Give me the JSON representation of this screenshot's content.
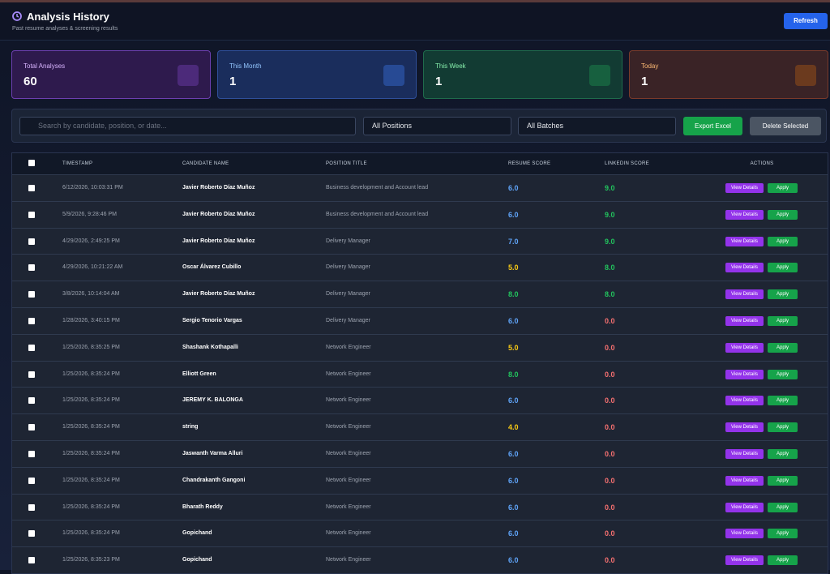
{
  "header": {
    "title": "Analysis History",
    "subtitle": "Past resume analyses & screening results",
    "refresh": "Refresh"
  },
  "stats": [
    {
      "label": "Total Analyses",
      "value": "60"
    },
    {
      "label": "This Month",
      "value": "1"
    },
    {
      "label": "This Week",
      "value": "1"
    },
    {
      "label": "Today",
      "value": "1"
    }
  ],
  "toolbar": {
    "search_placeholder": "Search by candidate, position, or date...",
    "positions": "All Positions",
    "batches": "All Batches",
    "export": "Export Excel",
    "delete": "Delete Selected"
  },
  "table": {
    "columns": [
      "TIMESTAMP",
      "CANDIDATE NAME",
      "POSITION TITLE",
      "RESUME SCORE",
      "LINKEDIN SCORE",
      "ACTIONS"
    ],
    "actions": [
      "View Details",
      "Apply"
    ],
    "rows": [
      [
        "6/12/2026, 10:03:31 PM",
        "Javier Roberto Díaz Muñoz",
        "Business development and Account lead",
        "6.0",
        "9.0"
      ],
      [
        "5/9/2026, 9:28:46 PM",
        "Javier Roberto Díaz Muñoz",
        "Business development and Account lead",
        "6.0",
        "9.0"
      ],
      [
        "4/29/2026, 2:49:25 PM",
        "Javier Roberto Díaz Muñoz",
        "Delivery Manager",
        "7.0",
        "9.0"
      ],
      [
        "4/29/2026, 10:21:22 AM",
        "Oscar Álvarez Cubillo",
        "Delivery Manager",
        "5.0",
        "8.0"
      ],
      [
        "3/8/2026, 10:14:04 AM",
        "Javier Roberto Díaz Muñoz",
        "Delivery Manager",
        "8.0",
        "8.0"
      ],
      [
        "1/28/2026, 3:40:15 PM",
        "Sergio Tenorio Vargas",
        "Delivery Manager",
        "6.0",
        "0.0"
      ],
      [
        "1/25/2026, 8:35:25 PM",
        "Shashank Kothapalli",
        "Network Engineer",
        "5.0",
        "0.0"
      ],
      [
        "1/25/2026, 8:35:24 PM",
        "Elliott Green",
        "Network Engineer",
        "8.0",
        "0.0"
      ],
      [
        "1/25/2026, 8:35:24 PM",
        "JEREMY K. BALONGA",
        "Network Engineer",
        "6.0",
        "0.0"
      ],
      [
        "1/25/2026, 8:35:24 PM",
        "string",
        "Network Engineer",
        "4.0",
        "0.0"
      ],
      [
        "1/25/2026, 8:35:24 PM",
        "Jaswanth Varma Alluri",
        "Network Engineer",
        "6.0",
        "0.0"
      ],
      [
        "1/25/2026, 8:35:24 PM",
        "Chandrakanth Gangoni",
        "Network Engineer",
        "6.0",
        "0.0"
      ],
      [
        "1/25/2026, 8:35:24 PM",
        "Bharath Reddy",
        "Network Engineer",
        "6.0",
        "0.0"
      ],
      [
        "1/25/2026, 8:35:24 PM",
        "Gopichand",
        "Network Engineer",
        "6.0",
        "0.0"
      ],
      [
        "1/25/2026, 8:35:23 PM",
        "Gopichand",
        "Network Engineer",
        "6.0",
        "0.0"
      ]
    ]
  }
}
